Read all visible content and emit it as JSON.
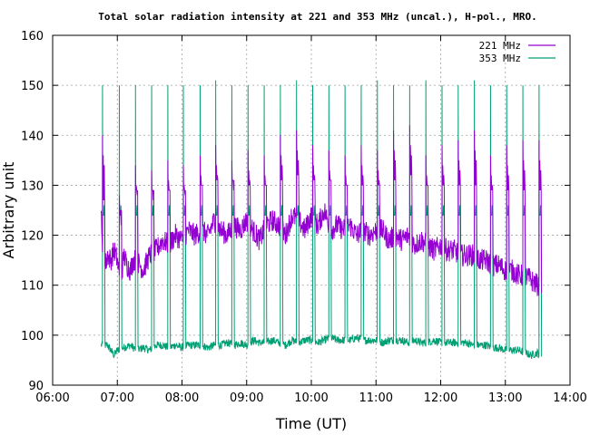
{
  "chart_data": {
    "type": "line",
    "title": "Total solar radiation intensity at 221 and 353 MHz (uncal.), H-pol., MRO.",
    "xlabel": "Time (UT)",
    "ylabel": "Arbitrary unit",
    "xlim": [
      6.0,
      14.0
    ],
    "ylim": [
      90,
      160
    ],
    "x_ticks": [
      "06:00",
      "07:00",
      "08:00",
      "09:00",
      "10:00",
      "11:00",
      "12:00",
      "13:00",
      "14:00"
    ],
    "y_ticks": [
      "90",
      "100",
      "110",
      "120",
      "130",
      "140",
      "150",
      "160"
    ],
    "grid": true,
    "legend_position": "top-right",
    "colors": {
      "s221": "#9400d3",
      "s353": "#009e73",
      "axis": "#000000",
      "grid": "#a0a0a0"
    },
    "series": [
      {
        "name": "221 MHz",
        "x": [
          6.75,
          6.78,
          6.8,
          6.85,
          6.9,
          6.95,
          7.0,
          7.05,
          7.1,
          7.15,
          7.2,
          7.25,
          7.3,
          7.4,
          7.5,
          7.6,
          7.7,
          7.8,
          7.9,
          8.0,
          8.1,
          8.2,
          8.3,
          8.4,
          8.5,
          8.6,
          8.7,
          8.8,
          8.9,
          9.0,
          9.1,
          9.2,
          9.3,
          9.4,
          9.5,
          9.6,
          9.7,
          9.8,
          9.9,
          10.0,
          10.1,
          10.2,
          10.3,
          10.4,
          10.5,
          10.6,
          10.7,
          10.8,
          10.9,
          11.0,
          11.1,
          11.2,
          11.3,
          11.4,
          11.5,
          11.6,
          11.7,
          11.8,
          11.9,
          12.0,
          12.1,
          12.2,
          12.3,
          12.4,
          12.5,
          12.6,
          12.7,
          12.8,
          12.9,
          13.0,
          13.1,
          13.2,
          13.3,
          13.4,
          13.5,
          13.55
        ],
        "y": [
          124,
          116,
          113,
          116,
          115,
          117,
          115,
          110,
          116,
          114,
          113,
          115,
          115,
          113,
          116,
          117,
          119,
          118,
          120,
          119,
          121,
          120,
          121,
          120,
          123,
          121,
          120,
          122,
          121,
          123,
          121,
          119,
          122,
          123,
          122,
          120,
          124,
          123,
          121,
          124,
          122,
          125,
          121,
          122,
          121,
          122,
          120,
          121,
          120,
          121,
          121,
          119,
          120,
          119,
          120,
          118,
          119,
          118,
          117,
          118,
          117,
          117,
          116,
          116,
          116,
          115,
          115,
          114,
          114,
          113,
          113,
          112,
          112,
          111,
          110,
          110
        ]
      },
      {
        "name": "353 MHz",
        "x": [
          6.75,
          6.8,
          6.85,
          6.9,
          6.95,
          7.0,
          7.1,
          7.2,
          7.3,
          7.4,
          7.5,
          7.6,
          7.7,
          7.8,
          7.9,
          8.0,
          8.1,
          8.2,
          8.3,
          8.4,
          8.5,
          8.6,
          8.7,
          8.8,
          8.9,
          9.0,
          9.1,
          9.2,
          9.3,
          9.4,
          9.5,
          9.6,
          9.7,
          9.8,
          9.9,
          10.0,
          10.1,
          10.2,
          10.3,
          10.4,
          10.5,
          10.6,
          10.7,
          10.8,
          10.9,
          11.0,
          11.1,
          11.2,
          11.3,
          11.4,
          11.5,
          11.6,
          11.7,
          11.8,
          11.9,
          12.0,
          12.1,
          12.2,
          12.3,
          12.4,
          12.5,
          12.6,
          12.7,
          12.8,
          12.9,
          13.0,
          13.1,
          13.2,
          13.3,
          13.4,
          13.5,
          13.55
        ],
        "y": [
          98,
          98,
          98,
          97,
          96,
          97,
          97.5,
          98,
          97,
          97.5,
          97,
          98,
          98,
          97.5,
          98,
          97.5,
          98,
          98,
          98,
          97.5,
          98,
          98,
          98.5,
          98,
          98.5,
          98,
          99,
          98.5,
          98.5,
          99,
          98.5,
          98,
          99,
          98.5,
          99,
          99,
          98.5,
          99,
          99.5,
          99,
          99,
          99,
          99.5,
          99,
          99,
          99,
          98.5,
          99,
          99,
          99,
          98.5,
          99,
          98.5,
          98.5,
          99,
          98.5,
          98.5,
          98.5,
          98.5,
          98.5,
          98,
          98,
          98,
          97.5,
          97.5,
          97,
          97,
          97,
          96.5,
          96,
          96.5,
          95
        ]
      }
    ],
    "calibration_pulses": {
      "times": [
        6.77,
        7.03,
        7.28,
        7.53,
        7.78,
        8.02,
        8.28,
        8.52,
        8.77,
        9.02,
        9.27,
        9.52,
        9.77,
        10.02,
        10.27,
        10.52,
        10.77,
        11.02,
        11.27,
        11.52,
        11.77,
        12.02,
        12.27,
        12.52,
        12.77,
        13.02,
        13.27,
        13.52
      ],
      "s221_peak": [
        140,
        128,
        134,
        133,
        135,
        134,
        136,
        138,
        135,
        137,
        136,
        140,
        141,
        138,
        137,
        136,
        138,
        137,
        141,
        142,
        136,
        138,
        139,
        141,
        136,
        138,
        139,
        139
      ],
      "s221_plateau": [
        127,
        125,
        129,
        129,
        129,
        129,
        130,
        131,
        131,
        130,
        130,
        131,
        132,
        131,
        131,
        130,
        130,
        130,
        131,
        132,
        130,
        130,
        130,
        130,
        129,
        129,
        129,
        129
      ],
      "s353_peak": [
        150,
        150,
        150,
        150,
        150,
        150,
        150,
        151,
        150,
        150,
        150,
        150,
        151,
        150,
        150,
        150,
        150,
        151,
        150,
        150,
        151,
        150,
        150,
        151,
        150,
        150,
        150,
        150
      ]
    }
  }
}
